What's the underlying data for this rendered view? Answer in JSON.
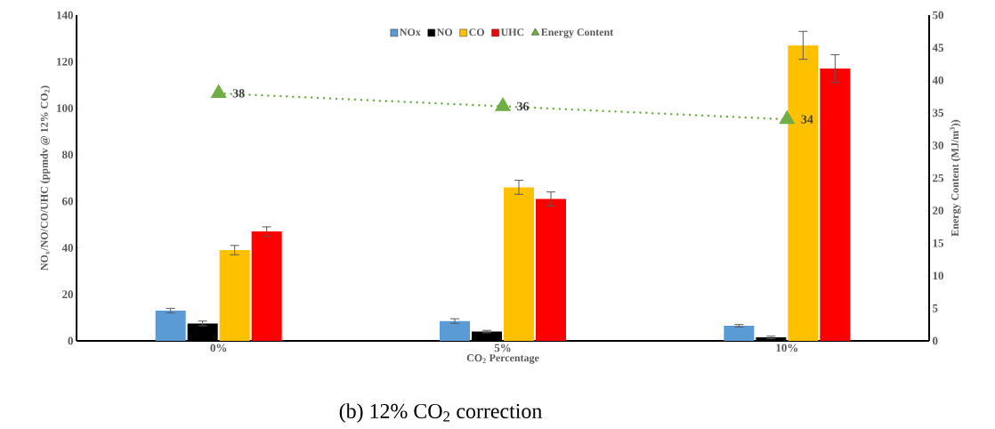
{
  "chart_data": {
    "type": "bar",
    "categories": [
      "0%",
      "5%",
      "10%"
    ],
    "xlabel": "CO$_{2}$ Percentage",
    "ylabel": "NO$_{x}$/NO/CO/UHC (ppmdv @ 12% CO$_{2}$)",
    "y2label": "Energy Content (MJ/m$^{3}$))",
    "ylim": [
      0,
      140
    ],
    "yticks": [
      0,
      20,
      40,
      60,
      80,
      100,
      120,
      140
    ],
    "y2lim": [
      0,
      50
    ],
    "y2ticks": [
      0,
      5,
      10,
      15,
      20,
      25,
      30,
      35,
      40,
      45,
      50
    ],
    "legend": "top",
    "grid": false,
    "annotations": [
      "(b) 12% CO$_{2}$ correction"
    ],
    "series": [
      {
        "name": "NOx",
        "color": "#5b9bd5",
        "values": [
          13,
          8.5,
          6.5
        ],
        "errors": [
          1,
          1,
          0.5
        ]
      },
      {
        "name": "NO",
        "color": "#000000",
        "values": [
          7.5,
          4,
          1.5
        ],
        "errors": [
          1,
          0.5,
          0.5
        ]
      },
      {
        "name": "CO",
        "color": "#ffc000",
        "values": [
          39,
          66,
          127
        ],
        "errors": [
          2,
          3,
          6
        ]
      },
      {
        "name": "UHC",
        "color": "#ff0000",
        "values": [
          47,
          61,
          117
        ],
        "errors": [
          2,
          3,
          6
        ]
      },
      {
        "name": "Energy Content",
        "type": "line",
        "axis": "y2",
        "color": "#70ad47",
        "marker": "triangle",
        "line_style": "dotted",
        "values": [
          38,
          36,
          34
        ],
        "value_labels": [
          "38",
          "36",
          "34"
        ]
      }
    ]
  }
}
